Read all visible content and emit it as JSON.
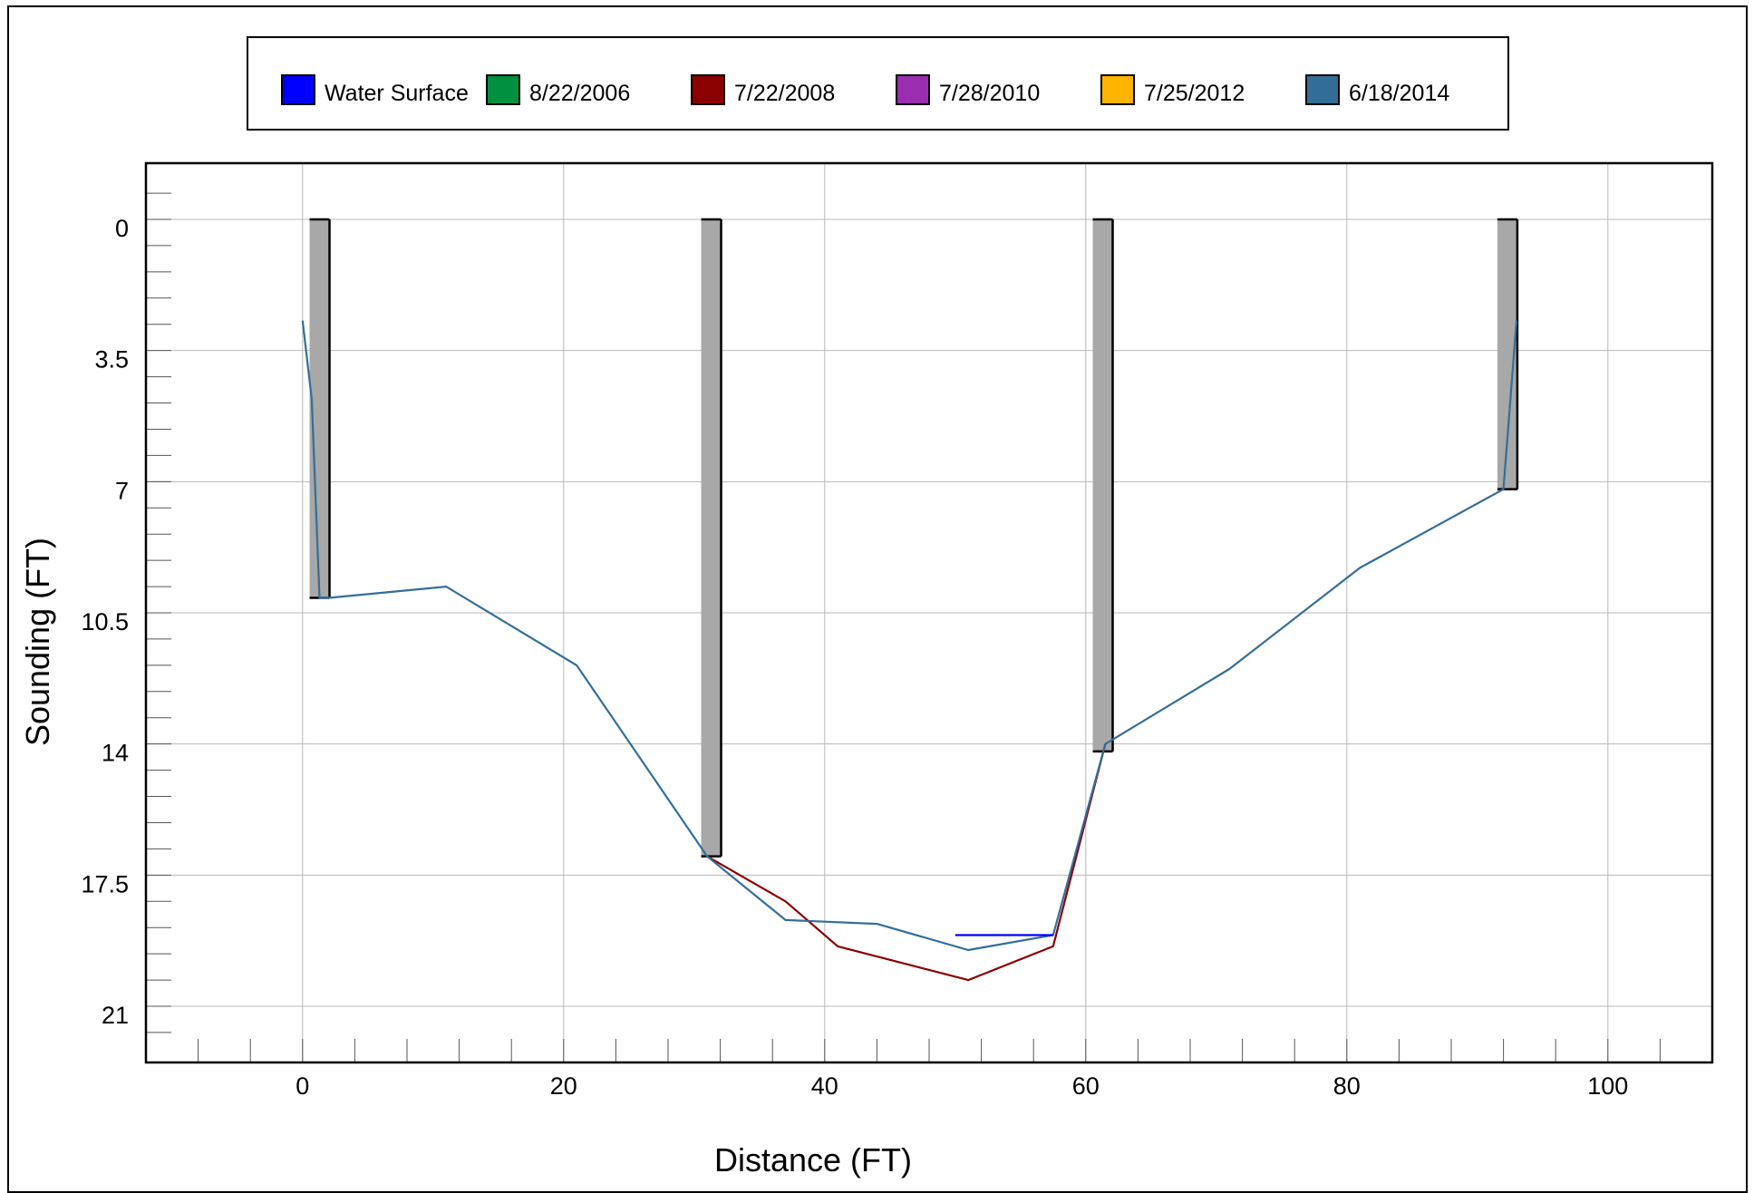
{
  "chart_data": {
    "type": "line",
    "title": "",
    "xlabel": "Distance (FT)",
    "ylabel": "Sounding (FT)",
    "xlim": [
      -12,
      108
    ],
    "ylim": [
      22.5,
      -1.5
    ],
    "y_inverted": true,
    "grid": true,
    "legend_position": "top",
    "x_ticks": [
      "0",
      "20",
      "40",
      "60",
      "80",
      "100"
    ],
    "x_tick_values": [
      0,
      20,
      40,
      60,
      80,
      100
    ],
    "y_ticks": [
      "0",
      "3.5",
      "7",
      "10.5",
      "14",
      "17.5",
      "21"
    ],
    "y_tick_values": [
      0,
      3.5,
      7,
      10.5,
      14,
      17.5,
      21
    ],
    "legend": [
      {
        "label": "Water Surface",
        "color": "#0000ff"
      },
      {
        "label": "8/22/2006",
        "color": "#009040"
      },
      {
        "label": "7/22/2008",
        "color": "#8b0000"
      },
      {
        "label": "7/28/2010",
        "color": "#9a2db0"
      },
      {
        "label": "7/25/2012",
        "color": "#ffb400"
      },
      {
        "label": "6/18/2014",
        "color": "#336e98"
      }
    ],
    "series": [
      {
        "name": "7/22/2008",
        "color": "#8b0000",
        "x": [
          31,
          37,
          41,
          51,
          57.5,
          61.5
        ],
        "y": [
          17.0,
          18.2,
          19.4,
          20.3,
          19.4,
          14.0
        ]
      },
      {
        "name": "6/18/2014",
        "color": "#336e98",
        "x": [
          0,
          0.7,
          1.3,
          2,
          11,
          21,
          31,
          37,
          44,
          51,
          57.5,
          61.5,
          71,
          81,
          92,
          93
        ],
        "y": [
          2.7,
          4.8,
          10.1,
          10.1,
          9.8,
          11.9,
          17.0,
          18.7,
          18.8,
          19.5,
          19.1,
          14.0,
          12.0,
          9.3,
          7.2,
          2.7
        ]
      },
      {
        "name": "Water Surface",
        "color": "#0000ff",
        "x": [
          50,
          57.5
        ],
        "y": [
          19.1,
          19.1
        ]
      }
    ],
    "piles": [
      {
        "x": 1.3,
        "top": 0,
        "bottom": 10.1
      },
      {
        "x": 31.3,
        "top": 0,
        "bottom": 17.0
      },
      {
        "x": 61.3,
        "top": 0,
        "bottom": 14.2
      },
      {
        "x": 92.3,
        "top": 0,
        "bottom": 7.2
      }
    ]
  }
}
